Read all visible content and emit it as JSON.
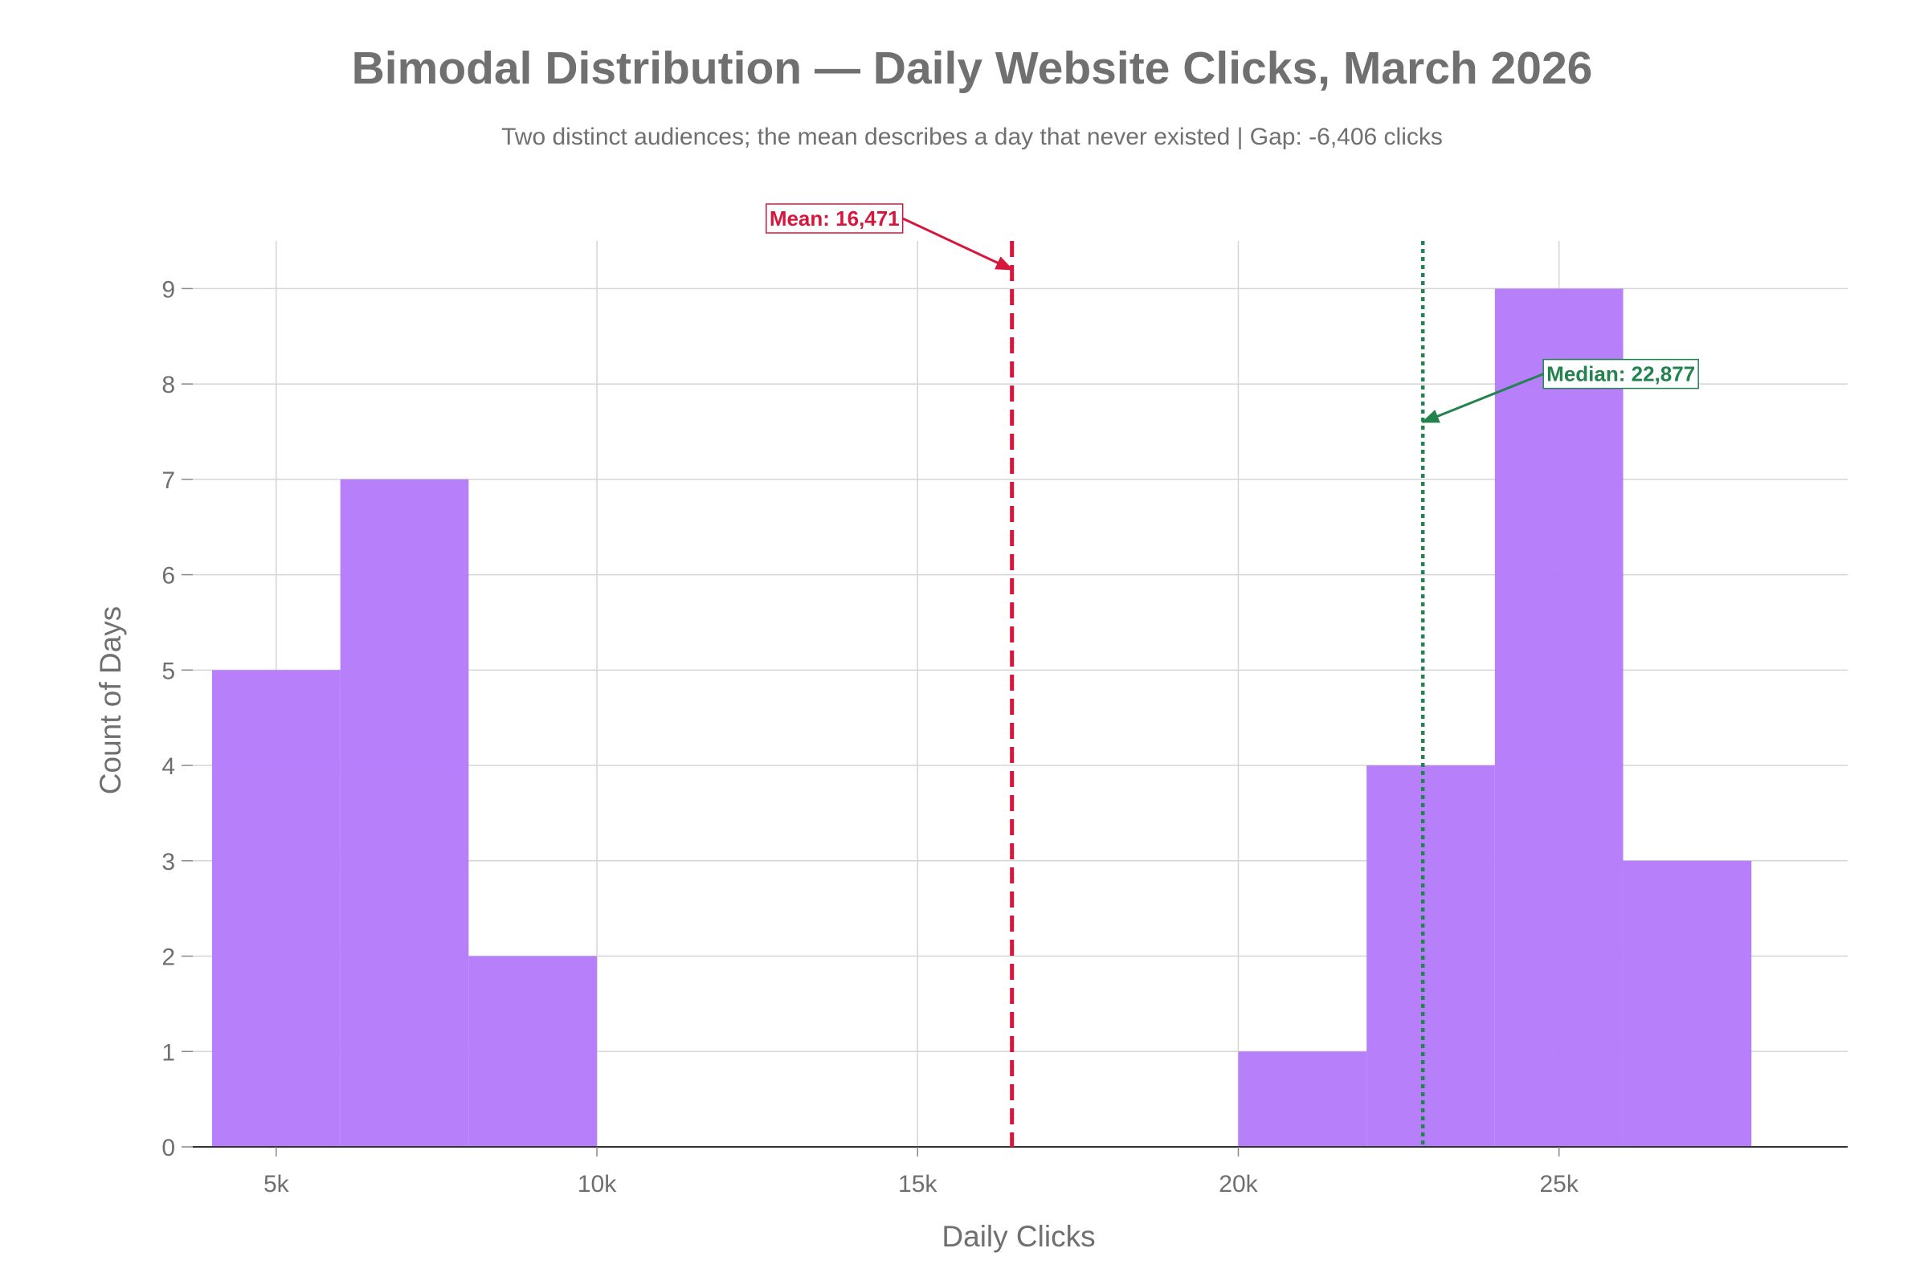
{
  "chart_data": {
    "type": "bar",
    "title": "Bimodal Distribution — Daily Website Clicks, March 2026",
    "subtitle": "Two distinct audiences; the mean describes a day that never existed | Gap: -6,406 clicks",
    "xlabel": "Daily Clicks",
    "ylabel": "Count of Days",
    "xlim": [
      3700,
      29500
    ],
    "ylim": [
      0,
      9.5
    ],
    "x_ticks": [
      {
        "value": 5000,
        "label": "5k"
      },
      {
        "value": 10000,
        "label": "10k"
      },
      {
        "value": 15000,
        "label": "15k"
      },
      {
        "value": 20000,
        "label": "20k"
      },
      {
        "value": 25000,
        "label": "25k"
      }
    ],
    "y_ticks": [
      {
        "value": 0,
        "label": "0"
      },
      {
        "value": 1,
        "label": "1"
      },
      {
        "value": 2,
        "label": "2"
      },
      {
        "value": 3,
        "label": "3"
      },
      {
        "value": 4,
        "label": "4"
      },
      {
        "value": 5,
        "label": "5"
      },
      {
        "value": 6,
        "label": "6"
      },
      {
        "value": 7,
        "label": "7"
      },
      {
        "value": 8,
        "label": "8"
      },
      {
        "value": 9,
        "label": "9"
      }
    ],
    "grid": true,
    "bar_color": "#b57bfa",
    "bins": [
      {
        "start": 4000,
        "end": 6000,
        "count": 5
      },
      {
        "start": 6000,
        "end": 8000,
        "count": 7
      },
      {
        "start": 8000,
        "end": 10000,
        "count": 2
      },
      {
        "start": 10000,
        "end": 12000,
        "count": 0
      },
      {
        "start": 12000,
        "end": 14000,
        "count": 0
      },
      {
        "start": 14000,
        "end": 16000,
        "count": 0
      },
      {
        "start": 16000,
        "end": 18000,
        "count": 0
      },
      {
        "start": 18000,
        "end": 20000,
        "count": 0
      },
      {
        "start": 20000,
        "end": 22000,
        "count": 1
      },
      {
        "start": 22000,
        "end": 24000,
        "count": 4
      },
      {
        "start": 24000,
        "end": 26000,
        "count": 9
      },
      {
        "start": 26000,
        "end": 28000,
        "count": 3
      }
    ],
    "reference_lines": [
      {
        "kind": "mean",
        "value": 16471,
        "label": "Mean: 16,471",
        "color": "#d7163c",
        "dash": "dashed",
        "arrow_target_y": 9.2,
        "label_position": "top-left"
      },
      {
        "kind": "median",
        "value": 22877,
        "label": "Median: 22,877",
        "color": "#23834f",
        "dash": "dotted",
        "arrow_target_y": 7.6,
        "label_position": "right"
      }
    ]
  }
}
